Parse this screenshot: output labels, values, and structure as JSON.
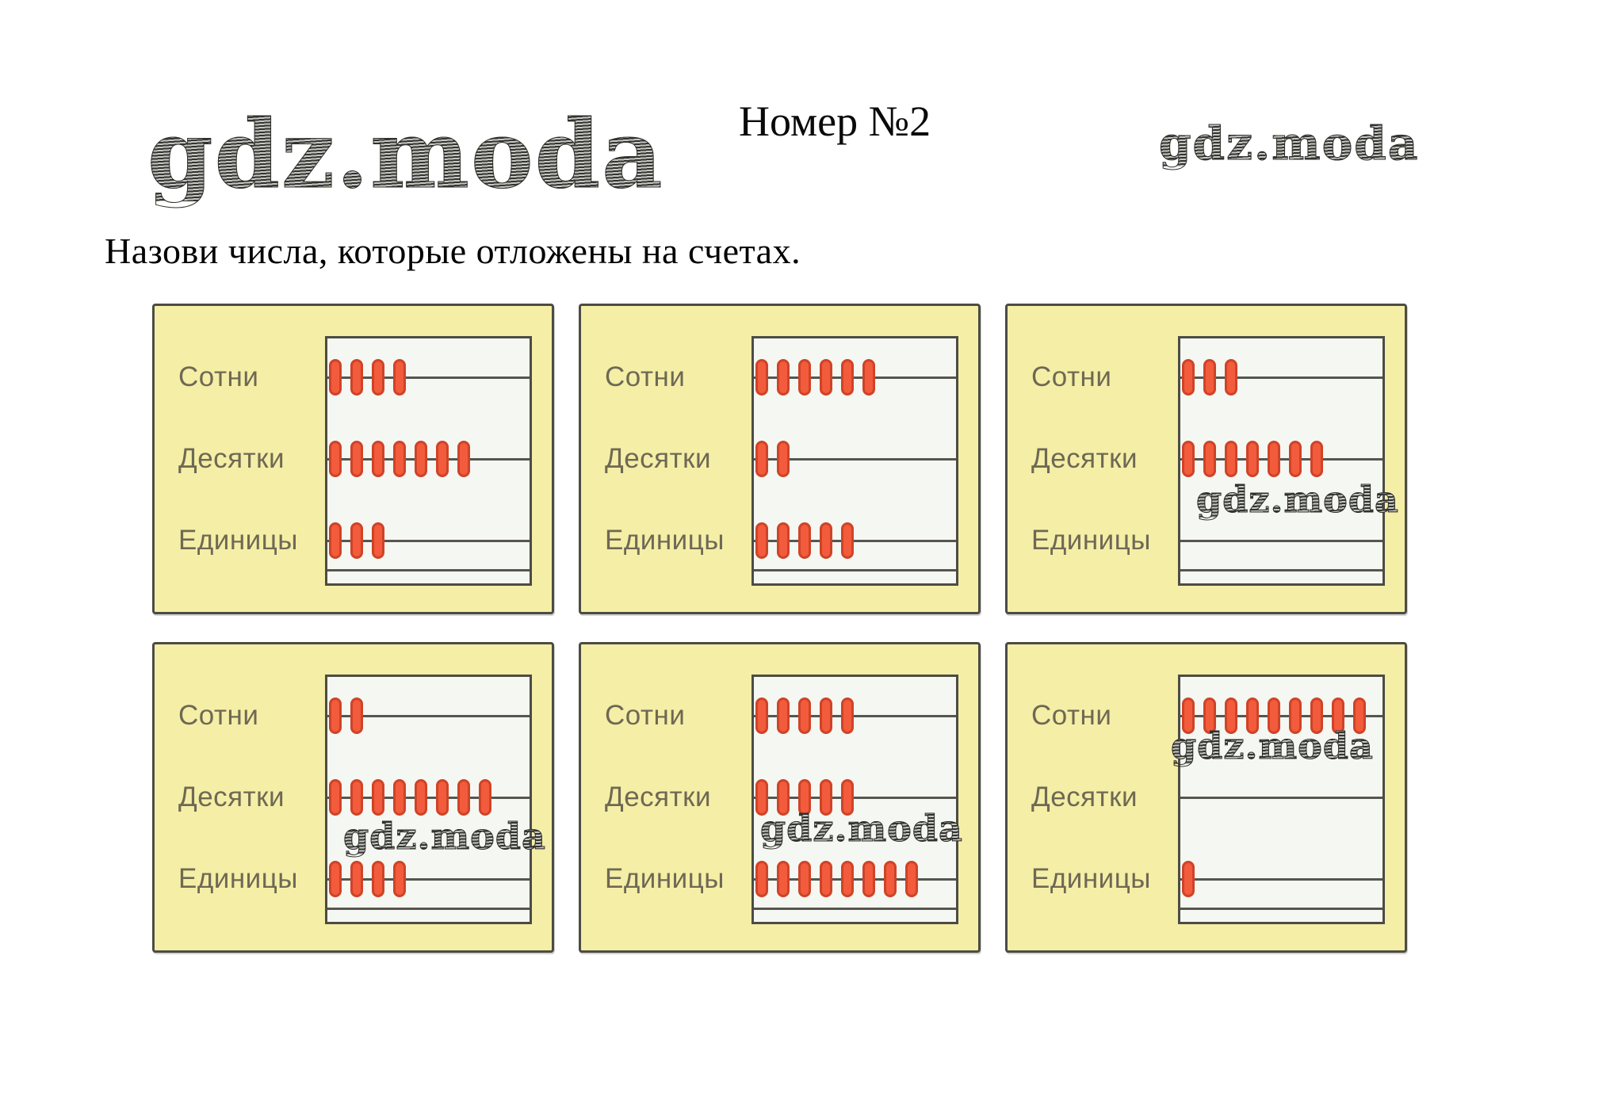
{
  "page": {
    "title": "Номер №2",
    "instruction": "Назови числа, которые отложены на счетах.",
    "watermark_logo": "gdz.moda",
    "watermark_top_right": "gdz.moda"
  },
  "row_labels": [
    "Сотни",
    "Десятки",
    "Единицы"
  ],
  "panels": [
    {
      "hundreds": 4,
      "tens": 7,
      "units": 3
    },
    {
      "hundreds": 6,
      "tens": 2,
      "units": 5
    },
    {
      "hundreds": 3,
      "tens": 7,
      "units": 0,
      "watermark": "gdz.moda"
    },
    {
      "hundreds": 2,
      "tens": 8,
      "units": 4,
      "watermark": "gdz.moda"
    },
    {
      "hundreds": 5,
      "tens": 5,
      "units": 8,
      "watermark": "gdz.moda"
    },
    {
      "hundreds": 9,
      "tens": 0,
      "units": 1,
      "watermark": "gdz.moda"
    }
  ],
  "colors": {
    "panel_bg": "#f5eea6",
    "panel_border": "#4c4c44",
    "abacus_bg": "#f5f7f2",
    "wire": "#56564e",
    "bead_fill": "#f25b3b",
    "bead_border": "#cf4328",
    "label": "#6e6954"
  }
}
